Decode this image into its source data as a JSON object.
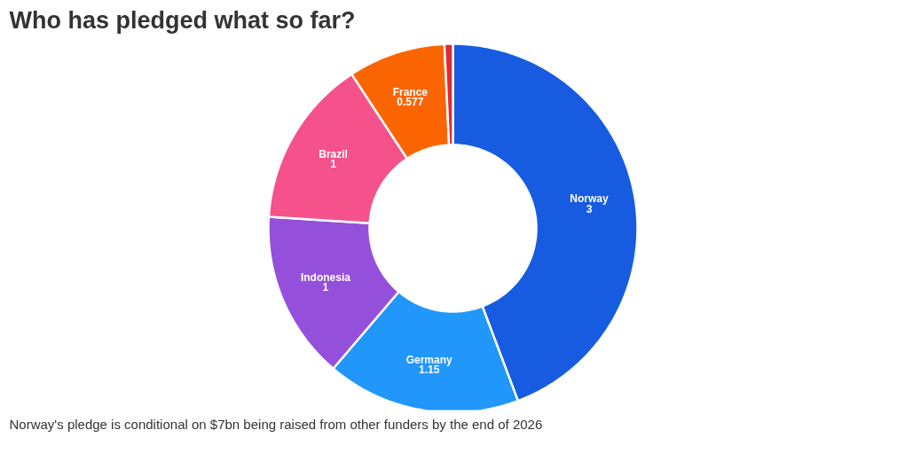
{
  "chart_data": {
    "type": "donut",
    "title": "Who has pledged what so far?",
    "categories": [
      "Norway",
      "Germany",
      "Indonesia",
      "Brazil",
      "France",
      null
    ],
    "values": [
      3,
      1.15,
      1,
      1,
      0.577,
      0.05
    ],
    "value_labels": [
      "3",
      "1.15",
      "1",
      "1",
      "0.577",
      null
    ],
    "colors": [
      "#175ce0",
      "#2196fb",
      "#9550db",
      "#f5518b",
      "#fa6502",
      "#e0283a"
    ],
    "legend": false,
    "annotations": [
      "Norway's pledge is conditional on $7bn being raised from other funders by the end of 2026"
    ]
  }
}
